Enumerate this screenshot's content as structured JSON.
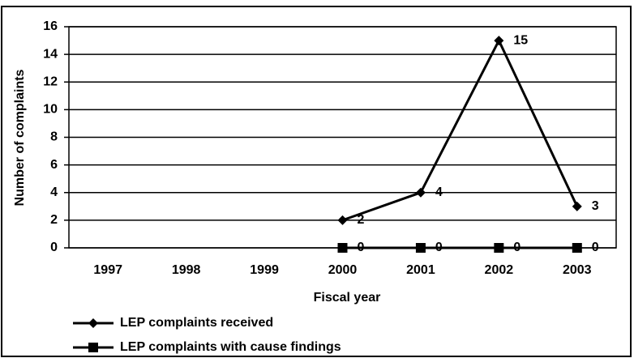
{
  "chart_data": {
    "type": "line",
    "x_label": "Fiscal year",
    "y_label": "Number of complaints",
    "categories": [
      "1997",
      "1998",
      "1999",
      "2000",
      "2001",
      "2002",
      "2003"
    ],
    "series": [
      {
        "name": "LEP complaints received",
        "color": "#000000",
        "marker": "diamond",
        "values": [
          null,
          null,
          null,
          2,
          4,
          15,
          3
        ]
      },
      {
        "name": "LEP complaints with cause findings",
        "color": "#000000",
        "marker": "square",
        "values": [
          null,
          null,
          null,
          0,
          0,
          0,
          0
        ]
      }
    ],
    "ylim": [
      0,
      16
    ],
    "yticks": [
      0,
      2,
      4,
      6,
      8,
      10,
      12,
      14,
      16
    ],
    "grid": true,
    "legend": "bottom-left"
  }
}
